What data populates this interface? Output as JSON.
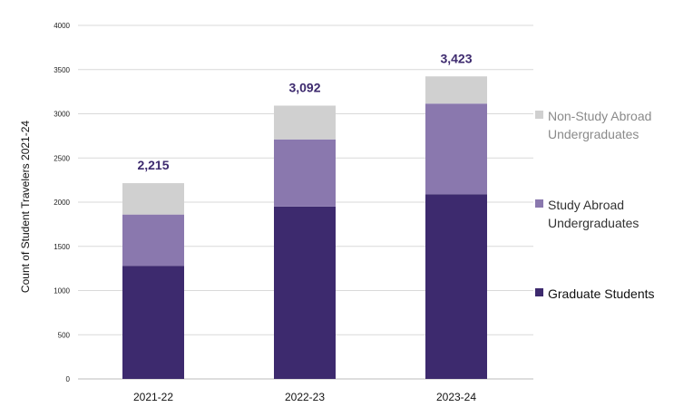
{
  "chart_data": {
    "type": "bar",
    "stacked": true,
    "categories": [
      "2021-22",
      "2022-23",
      "2023-24"
    ],
    "series": [
      {
        "name": "Graduate Students",
        "color": "#3d2a6e",
        "values": [
          1280,
          1950,
          2090
        ]
      },
      {
        "name": "Study Abroad Undergraduates",
        "color": "#8a78ae",
        "values": [
          580,
          760,
          1025
        ]
      },
      {
        "name": "Non-Study Abroad Undergraduates",
        "color": "#d0d0d0",
        "values": [
          355,
          382,
          308
        ]
      }
    ],
    "totals": [
      "2,215",
      "3,092",
      "3,423"
    ],
    "ylabel": "Count of Student Travelers 2021-24",
    "xlabel": "",
    "ylim": [
      0,
      4000
    ],
    "yticks": [
      "0",
      "500",
      "1000",
      "1500",
      "2000",
      "2500",
      "3000",
      "3500",
      "4000"
    ],
    "grid": true,
    "legend_position": "right"
  },
  "legend": [
    {
      "label": "Non-Study Abroad Undergraduates",
      "color": "#d0d0d0",
      "text_color": "#8a8a8a"
    },
    {
      "label": "Study Abroad Undergraduates",
      "color": "#8a78ae",
      "text_color": "#333333"
    },
    {
      "label": "Graduate Students",
      "color": "#3d2a6e",
      "text_color": "#111111"
    }
  ]
}
